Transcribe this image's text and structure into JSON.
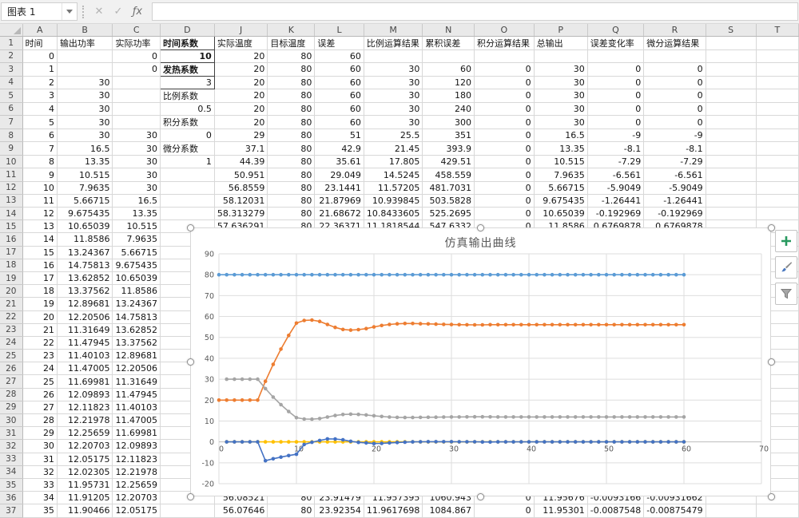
{
  "toolbar": {
    "name_box": "图表 1",
    "cancel": "✕",
    "confirm": "✓",
    "fx": "ƒx",
    "formula_value": "",
    "formula_placeholder": ""
  },
  "sheet": {
    "col_letters": [
      "A",
      "B",
      "C",
      "D",
      "J",
      "K",
      "L",
      "M",
      "N",
      "O",
      "P",
      "Q",
      "R",
      "S",
      "T"
    ],
    "d_bold_rows": [
      1,
      2,
      3
    ],
    "d_box_rows": [
      1,
      2,
      3,
      4
    ],
    "rows": [
      [
        "时间",
        "输出功率",
        "实际功率",
        "时间系数",
        "实际温度",
        "目标温度",
        "误差",
        "比例运算结果",
        "累积误差",
        "积分运算结果",
        "总输出",
        "误差变化率",
        "微分运算结果",
        "",
        ""
      ],
      [
        "0",
        "",
        "0",
        "10",
        "20",
        "80",
        "60",
        "",
        "",
        "",
        "",
        "",
        "",
        "",
        ""
      ],
      [
        "1",
        "",
        "0",
        "发热系数",
        "20",
        "80",
        "60",
        "30",
        "60",
        "0",
        "30",
        "0",
        "0",
        "",
        ""
      ],
      [
        "2",
        "30",
        "",
        "3",
        "20",
        "80",
        "60",
        "30",
        "120",
        "0",
        "30",
        "0",
        "0",
        "",
        ""
      ],
      [
        "3",
        "30",
        "",
        "比例系数",
        "20",
        "80",
        "60",
        "30",
        "180",
        "0",
        "30",
        "0",
        "0",
        "",
        ""
      ],
      [
        "4",
        "30",
        "",
        "0.5",
        "20",
        "80",
        "60",
        "30",
        "240",
        "0",
        "30",
        "0",
        "0",
        "",
        ""
      ],
      [
        "5",
        "30",
        "",
        "积分系数",
        "20",
        "80",
        "60",
        "30",
        "300",
        "0",
        "30",
        "0",
        "0",
        "",
        ""
      ],
      [
        "6",
        "30",
        "30",
        "0",
        "29",
        "80",
        "51",
        "25.5",
        "351",
        "0",
        "16.5",
        "-9",
        "-9",
        "",
        ""
      ],
      [
        "7",
        "16.5",
        "30",
        "微分系数",
        "37.1",
        "80",
        "42.9",
        "21.45",
        "393.9",
        "0",
        "13.35",
        "-8.1",
        "-8.1",
        "",
        ""
      ],
      [
        "8",
        "13.35",
        "30",
        "1",
        "44.39",
        "80",
        "35.61",
        "17.805",
        "429.51",
        "0",
        "10.515",
        "-7.29",
        "-7.29",
        "",
        ""
      ],
      [
        "9",
        "10.515",
        "30",
        "",
        "50.951",
        "80",
        "29.049",
        "14.5245",
        "458.559",
        "0",
        "7.9635",
        "-6.561",
        "-6.561",
        "",
        ""
      ],
      [
        "10",
        "7.9635",
        "30",
        "",
        "56.8559",
        "80",
        "23.1441",
        "11.57205",
        "481.7031",
        "0",
        "5.66715",
        "-5.9049",
        "-5.9049",
        "",
        ""
      ],
      [
        "11",
        "5.66715",
        "16.5",
        "",
        "58.12031",
        "80",
        "21.87969",
        "10.939845",
        "503.5828",
        "0",
        "9.675435",
        "-1.26441",
        "-1.26441",
        "",
        ""
      ],
      [
        "12",
        "9.675435",
        "13.35",
        "",
        "58.313279",
        "80",
        "21.68672",
        "10.8433605",
        "525.2695",
        "0",
        "10.65039",
        "-0.192969",
        "-0.192969",
        "",
        ""
      ],
      [
        "13",
        "10.65039",
        "10.515",
        "",
        "57.636291",
        "80",
        "22.36371",
        "11.1818544",
        "547.6332",
        "0",
        "11.8586",
        "0.6769878",
        "0.6769878",
        "",
        ""
      ],
      [
        "14",
        "11.8586",
        "7.9635",
        "",
        "",
        "",
        "",
        "",
        "",
        "",
        "",
        "",
        "",
        "",
        ""
      ],
      [
        "15",
        "13.24367",
        "5.66715",
        "",
        "",
        "",
        "",
        "",
        "",
        "",
        "",
        "",
        "",
        "",
        ""
      ],
      [
        "16",
        "14.75813",
        "9.675435",
        "",
        "",
        "",
        "",
        "",
        "",
        "",
        "",
        "",
        "",
        "",
        ""
      ],
      [
        "17",
        "13.62852",
        "10.65039",
        "",
        "",
        "",
        "",
        "",
        "",
        "",
        "",
        "",
        "",
        "",
        ""
      ],
      [
        "18",
        "13.37562",
        "11.8586",
        "",
        "",
        "",
        "",
        "",
        "",
        "",
        "",
        "",
        "",
        "",
        ""
      ],
      [
        "19",
        "12.89681",
        "13.24367",
        "",
        "",
        "",
        "",
        "",
        "",
        "",
        "",
        "",
        "",
        "",
        ""
      ],
      [
        "20",
        "12.20506",
        "14.75813",
        "",
        "",
        "",
        "",
        "",
        "",
        "",
        "",
        "",
        "",
        "",
        ""
      ],
      [
        "21",
        "11.31649",
        "13.62852",
        "",
        "",
        "",
        "",
        "",
        "",
        "",
        "",
        "",
        "",
        "",
        ""
      ],
      [
        "22",
        "11.47945",
        "13.37562",
        "",
        "",
        "",
        "",
        "",
        "",
        "",
        "",
        "",
        "",
        "",
        ""
      ],
      [
        "23",
        "11.40103",
        "12.89681",
        "",
        "",
        "",
        "",
        "",
        "",
        "",
        "",
        "",
        "",
        "",
        ""
      ],
      [
        "24",
        "11.47005",
        "12.20506",
        "",
        "",
        "",
        "",
        "",
        "",
        "",
        "",
        "",
        "",
        "",
        ""
      ],
      [
        "25",
        "11.69981",
        "11.31649",
        "",
        "",
        "",
        "",
        "",
        "",
        "",
        "",
        "",
        "",
        "",
        ""
      ],
      [
        "26",
        "12.09893",
        "11.47945",
        "",
        "",
        "",
        "",
        "",
        "",
        "",
        "",
        "",
        "",
        "",
        ""
      ],
      [
        "27",
        "12.11823",
        "11.40103",
        "",
        "",
        "",
        "",
        "",
        "",
        "",
        "",
        "",
        "",
        "",
        ""
      ],
      [
        "28",
        "12.21978",
        "11.47005",
        "",
        "",
        "",
        "",
        "",
        "",
        "",
        "",
        "",
        "",
        "",
        ""
      ],
      [
        "29",
        "12.25659",
        "11.69981",
        "",
        "",
        "",
        "",
        "",
        "",
        "",
        "",
        "",
        "",
        "",
        ""
      ],
      [
        "30",
        "12.20703",
        "12.09893",
        "",
        "",
        "",
        "",
        "",
        "",
        "",
        "",
        "",
        "",
        "",
        ""
      ],
      [
        "31",
        "12.05175",
        "12.11823",
        "",
        "",
        "",
        "",
        "",
        "",
        "",
        "",
        "",
        "",
        "",
        ""
      ],
      [
        "32",
        "12.02305",
        "12.21978",
        "",
        "",
        "",
        "",
        "",
        "",
        "",
        "",
        "",
        "",
        "",
        ""
      ],
      [
        "33",
        "11.95731",
        "12.25659",
        "",
        "",
        "",
        "",
        "",
        "",
        "",
        "",
        "",
        "",
        "",
        ""
      ],
      [
        "34",
        "11.91205",
        "12.20703",
        "",
        "56.08521",
        "80",
        "23.91479",
        "11.957395",
        "1060.943",
        "0",
        "11.95676",
        "-0.0093166",
        "-0.00931662",
        "",
        ""
      ],
      [
        "35",
        "11.90466",
        "12.05175",
        "",
        "56.07646",
        "80",
        "23.92354",
        "11.9617698",
        "1084.867",
        "0",
        "11.95301",
        "-0.0087548",
        "-0.00875479",
        "",
        ""
      ]
    ]
  },
  "chart_data": {
    "type": "line",
    "title": "仿真输出曲线",
    "xlabel": "",
    "ylabel": "",
    "xlim": [
      0,
      70
    ],
    "x_tick_step": 10,
    "ylim": [
      -20,
      90
    ],
    "y_tick_step": 10,
    "grid": true,
    "legend": "none",
    "marker": "circle",
    "series": [
      {
        "name": "目标温度",
        "color": "#5B9BD5",
        "x0": 0,
        "y": [
          80,
          80,
          80,
          80,
          80,
          80,
          80,
          80,
          80,
          80,
          80,
          80,
          80,
          80,
          80,
          80,
          80,
          80,
          80,
          80,
          80,
          80,
          80,
          80,
          80,
          80,
          80,
          80,
          80,
          80,
          80,
          80,
          80,
          80,
          80,
          80,
          80,
          80,
          80,
          80,
          80,
          80,
          80,
          80,
          80,
          80,
          80,
          80,
          80,
          80,
          80,
          80,
          80,
          80,
          80,
          80,
          80,
          80,
          80,
          80,
          80
        ]
      },
      {
        "name": "实际温度",
        "color": "#ED7D31",
        "x0": 0,
        "y": [
          20,
          20,
          20,
          20,
          20,
          20,
          29,
          37.1,
          44.39,
          50.951,
          56.8559,
          58.12031,
          58.313279,
          57.636291,
          56.2,
          54.8,
          53.8,
          53.5,
          53.7,
          54.2,
          55.0,
          55.7,
          56.2,
          56.5,
          56.65,
          56.65,
          56.55,
          56.45,
          56.35,
          56.25,
          56.15,
          56.1,
          56.05,
          56.0,
          56.02,
          56.08,
          56.1,
          56.1,
          56.1,
          56.1,
          56.1,
          56.1,
          56.1,
          56.1,
          56.1,
          56.1,
          56.1,
          56.1,
          56.1,
          56.1,
          56.1,
          56.1,
          56.1,
          56.1,
          56.1,
          56.1,
          56.1,
          56.1,
          56.1,
          56.1,
          56.1
        ]
      },
      {
        "name": "比例运算结果",
        "color": "#A5A5A5",
        "x0": 1,
        "y": [
          30,
          30,
          30,
          30,
          30,
          25.5,
          21.45,
          17.805,
          14.5245,
          11.57205,
          10.939845,
          10.8433605,
          11.1818544,
          11.9,
          12.6,
          13.1,
          13.25,
          13.15,
          12.9,
          12.5,
          12.15,
          11.9,
          11.75,
          11.675,
          11.675,
          11.725,
          11.775,
          11.825,
          11.875,
          11.925,
          11.95,
          11.975,
          12.0,
          11.99,
          11.96,
          11.95,
          11.95,
          11.95,
          11.95,
          11.95,
          11.95,
          11.95,
          11.95,
          11.95,
          11.95,
          11.95,
          11.95,
          11.95,
          11.95,
          11.95,
          11.95,
          11.95,
          11.95,
          11.95,
          11.95,
          11.95,
          11.95,
          11.95,
          11.95,
          11.95
        ]
      },
      {
        "name": "积分运算结果",
        "color": "#FFC000",
        "x0": 1,
        "y": [
          0,
          0,
          0,
          0,
          0,
          0,
          0,
          0,
          0,
          0,
          0,
          0,
          0,
          0,
          0,
          0,
          0,
          0,
          0,
          0,
          0,
          0,
          0,
          0,
          0,
          0,
          0,
          0,
          0,
          0,
          0,
          0,
          0,
          0,
          0,
          0,
          0,
          0,
          0,
          0,
          0,
          0,
          0,
          0,
          0,
          0,
          0,
          0,
          0,
          0,
          0,
          0,
          0,
          0,
          0,
          0,
          0,
          0,
          0,
          0
        ]
      },
      {
        "name": "微分运算结果",
        "color": "#4472C4",
        "x0": 1,
        "y": [
          0,
          0,
          0,
          0,
          0,
          -9,
          -8.1,
          -7.29,
          -6.561,
          -5.9049,
          -1.26441,
          -0.192969,
          0.6769878,
          1.44,
          1.4,
          1.0,
          0.3,
          -0.2,
          -0.5,
          -0.8,
          -0.7,
          -0.5,
          -0.3,
          -0.15,
          0,
          0.05,
          0.1,
          0.1,
          0.1,
          0.1,
          0.05,
          0.05,
          0.05,
          -0.02,
          -0.06,
          0,
          0,
          0,
          0,
          0,
          0,
          0,
          0,
          0,
          0,
          0,
          0,
          0,
          0,
          0,
          0,
          0,
          0,
          0,
          0,
          0,
          0,
          0,
          0,
          0
        ]
      }
    ]
  },
  "chart_tools": {
    "add_elements": "plus-icon",
    "chart_styles": "brush-icon",
    "chart_filters": "funnel-icon"
  }
}
